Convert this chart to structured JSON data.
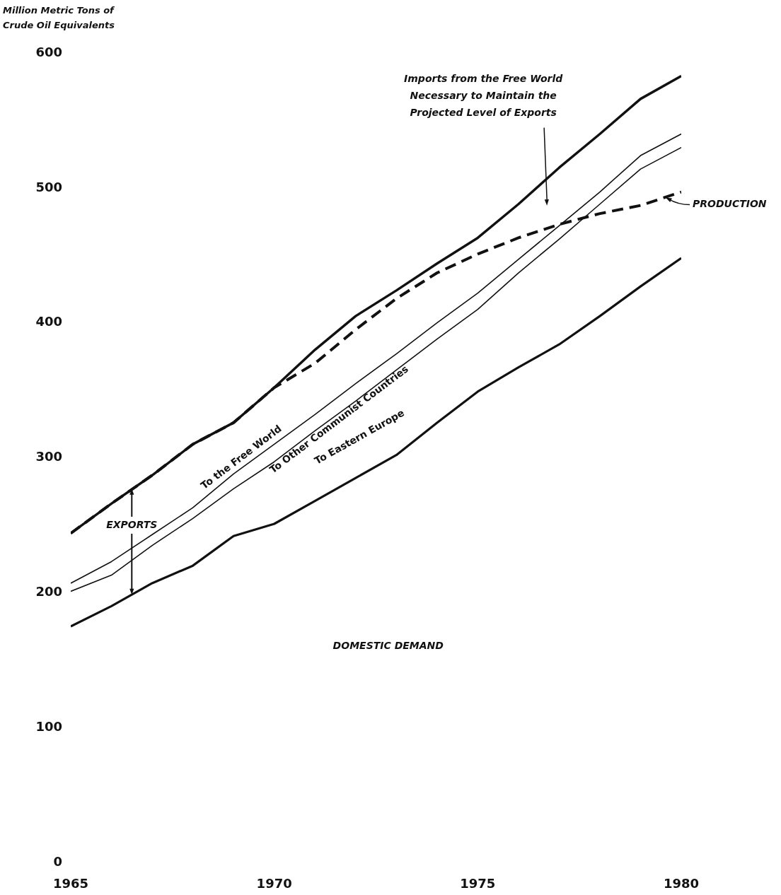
{
  "chart_data": {
    "type": "line",
    "ylabel": "Million Metric Tons of Crude Oil Equivalents",
    "x": [
      1965,
      1966,
      1967,
      1968,
      1969,
      1970,
      1971,
      1972,
      1973,
      1974,
      1975,
      1976,
      1977,
      1978,
      1979,
      1980
    ],
    "series": [
      {
        "color": "#111111",
        "values": [
          244,
          266,
          287,
          310,
          326,
          352,
          380,
          405,
          424,
          444,
          463,
          488,
          515,
          540,
          566,
          583
        ]
      },
      {
        "color": "#111111",
        "line_style": "dashed",
        "values": [
          244,
          266,
          287,
          310,
          326,
          352,
          370,
          395,
          418,
          437,
          451,
          463,
          473,
          481,
          487,
          497
        ]
      },
      {
        "color": "#111111",
        "values": [
          207,
          223,
          243,
          263,
          288,
          310,
          332,
          355,
          377,
          400,
          422,
          447,
          472,
          497,
          524,
          540
        ]
      },
      {
        "color": "#111111",
        "values": [
          201,
          213,
          235,
          255,
          277,
          297,
          320,
          342,
          365,
          388,
          410,
          437,
          462,
          488,
          514,
          530
        ]
      },
      {
        "color": "#111111",
        "values": [
          175,
          190,
          207,
          220,
          242,
          251,
          268,
          285,
          302,
          326,
          349,
          367,
          384,
          405,
          427,
          448
        ]
      }
    ],
    "xlim": [
      1965,
      1980
    ],
    "xticks": [
      1965,
      1970,
      1975,
      1980
    ],
    "ylim": [
      0,
      600
    ],
    "yticks": [
      0,
      100,
      200,
      300,
      400,
      500,
      600
    ],
    "grid": false,
    "legend": false,
    "marker": "none",
    "line_style": "solid",
    "annotations": [
      {
        "text": "EXPORTS",
        "x": 1966.5,
        "y": 277
      },
      "DOMESTIC DEMAND",
      "To the Free World",
      "To Other Communist Countries",
      "To Eastern Europe",
      "Imports from the Free World Necessary to Maintain the Projected Level of Exports",
      {
        "text": "PRODUCTION",
        "x": 1980,
        "y": 497
      }
    ]
  }
}
